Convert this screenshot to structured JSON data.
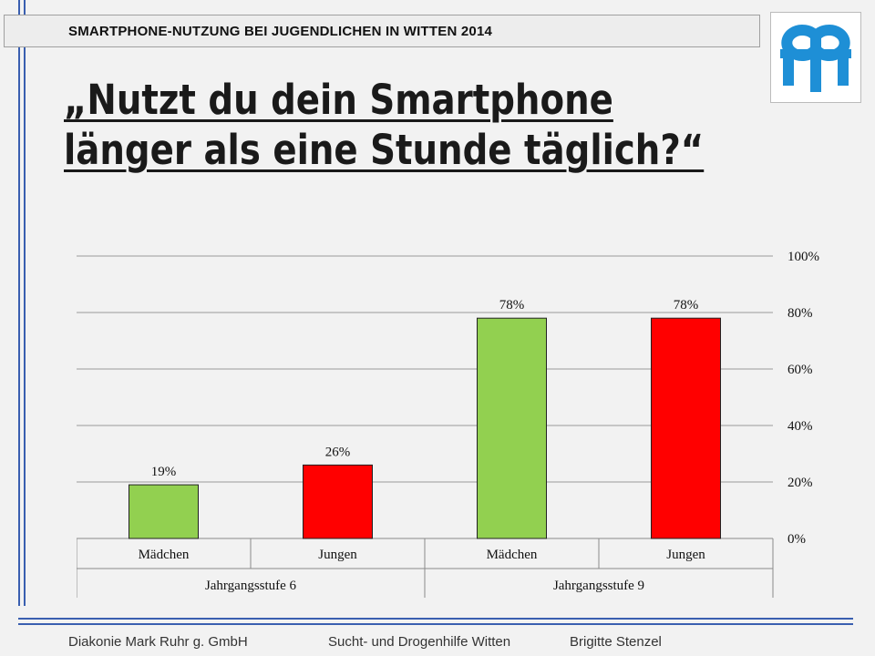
{
  "header": {
    "title": "SMARTPHONE-NUTZUNG BEI JUGENDLICHEN IN WITTEN 2014"
  },
  "slide": {
    "title_line1": "„Nutzt du dein Smartphone",
    "title_line2": "länger als eine Stunde täglich?“"
  },
  "logo": {
    "icon": "diakonie-logo-icon",
    "color": "#1e8fd6"
  },
  "chart_data": {
    "type": "bar",
    "categories": [
      "Mädchen",
      "Jungen",
      "Mädchen",
      "Jungen"
    ],
    "groups": [
      {
        "label": "Jahrgangsstufe 6",
        "categories": [
          "Mädchen",
          "Jungen"
        ]
      },
      {
        "label": "Jahrgangsstufe 9",
        "categories": [
          "Mädchen",
          "Jungen"
        ]
      }
    ],
    "values": [
      19,
      26,
      78,
      78
    ],
    "value_labels": [
      "19%",
      "26%",
      "78%",
      "78%"
    ],
    "bar_colors": [
      "#92d050",
      "#ff0000",
      "#92d050",
      "#ff0000"
    ],
    "yticks": [
      "0%",
      "20%",
      "40%",
      "60%",
      "80%",
      "100%"
    ],
    "ylim": [
      0,
      100
    ],
    "ytick_values": [
      0,
      20,
      40,
      60,
      80,
      100
    ],
    "y_axis_position": "right",
    "grid": true,
    "legend": "none"
  },
  "footer": {
    "org": "Diakonie Mark Ruhr g. GmbH",
    "dept": "Sucht- und Drogenhilfe Witten",
    "author": "Brigitte Stenzel"
  }
}
